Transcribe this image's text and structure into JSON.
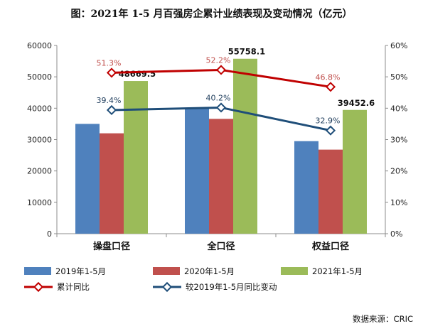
{
  "chart_data": {
    "title": "图：2021年 1-5 月百强房企累计业绩表现及变动情况（亿元）",
    "source": "数据来源：CRIC",
    "type": "bar",
    "categories": [
      "操盘口径",
      "全口径",
      "权益口径"
    ],
    "series": [
      {
        "name": "2019年1-5月",
        "type": "bar",
        "axis": "left",
        "color": "#4f81bd",
        "values": [
          35000,
          40000,
          29500
        ]
      },
      {
        "name": "2020年1-5月",
        "type": "bar",
        "axis": "left",
        "color": "#c0504d",
        "values": [
          32000,
          36600,
          26800
        ]
      },
      {
        "name": "2021年1-5月",
        "type": "bar",
        "axis": "left",
        "color": "#9bbb59",
        "values": [
          48669.5,
          55758.1,
          39452.6
        ],
        "labels": [
          "48669.5",
          "55758.1",
          "39452.6"
        ]
      },
      {
        "name": "累计同比",
        "type": "line",
        "axis": "right",
        "color": "#c00000",
        "values": [
          51.3,
          52.2,
          46.8
        ],
        "labels": [
          "51.3%",
          "52.2%",
          "46.8%"
        ]
      },
      {
        "name": "较2019年1-5月同比变动",
        "type": "line",
        "axis": "right",
        "color": "#1f4e79",
        "values": [
          39.4,
          40.2,
          32.9
        ],
        "labels": [
          "39.4%",
          "40.2%",
          "32.9%"
        ]
      }
    ],
    "y_left": {
      "min": 0,
      "max": 60000,
      "ticks": [
        "0",
        "10000",
        "20000",
        "30000",
        "40000",
        "50000",
        "60000"
      ]
    },
    "y_right": {
      "min": 0,
      "max": 60,
      "ticks": [
        "0%",
        "10%",
        "20%",
        "30%",
        "40%",
        "50%",
        "60%"
      ]
    },
    "legend_position": "bottom",
    "grid": false
  }
}
